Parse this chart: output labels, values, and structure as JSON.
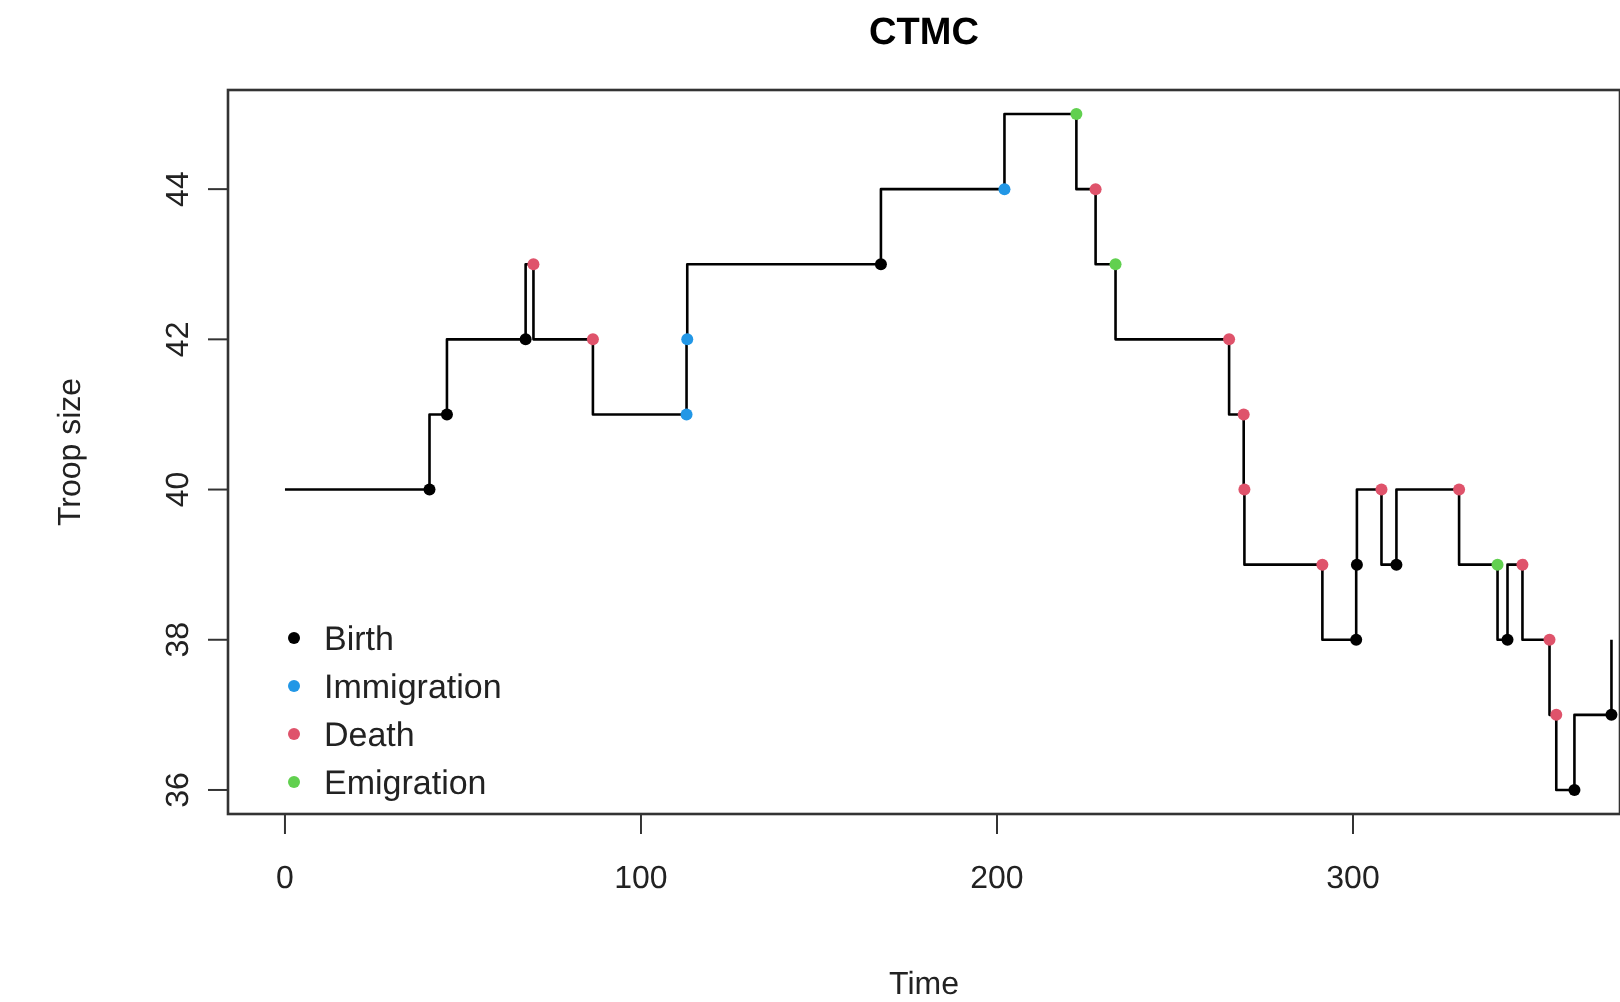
{
  "chart_data": {
    "type": "scatter",
    "title": "CTMC",
    "xlabel": "Time",
    "ylabel": "Troop size",
    "xlim": [
      -16,
      375
    ],
    "xticks": [
      0,
      100,
      200,
      300
    ],
    "ylim": [
      35.68,
      45.32
    ],
    "yticks": [
      36,
      38,
      40,
      42,
      44
    ],
    "grid": false,
    "legend": "bottom left",
    "marker": "circle",
    "series": [
      {
        "type": "step",
        "color": "#000000",
        "marker": "none",
        "line_style": "solid",
        "x": [
          0,
          40.6,
          45.5,
          67.6,
          69.8,
          86.5,
          112.8,
          113.0,
          167.4,
          202.1,
          222.3,
          227.7,
          233.3,
          265.2,
          269.3,
          269.5,
          291.4,
          300.9,
          301.1,
          308.0,
          312.2,
          329.8,
          340.6,
          343.4,
          347.6,
          355.2,
          357.1,
          362.2,
          372.6
        ],
        "values": [
          40,
          41,
          42,
          43,
          42,
          41,
          42,
          43,
          44,
          45,
          44,
          43,
          42,
          41,
          40,
          39,
          38,
          39,
          40,
          39,
          40,
          39,
          38,
          39,
          38,
          37,
          36,
          37,
          38
        ]
      },
      {
        "name": "Birth",
        "color": "#000000",
        "x": [
          40.6,
          45.5,
          67.6,
          167.4,
          300.9,
          301.1,
          312.2,
          343.4,
          362.2,
          372.6
        ],
        "values": [
          40,
          41,
          42,
          43,
          38,
          39,
          39,
          38,
          36,
          37
        ]
      },
      {
        "name": "Immigration",
        "color": "#2297e6",
        "x": [
          112.8,
          113.0,
          202.1
        ],
        "values": [
          41,
          42,
          44
        ]
      },
      {
        "name": "Death",
        "color": "#df536b",
        "x": [
          69.8,
          86.5,
          227.7,
          265.2,
          269.3,
          269.5,
          291.4,
          308.0,
          329.8,
          347.6,
          355.2,
          357.1
        ],
        "values": [
          43,
          42,
          44,
          42,
          41,
          40,
          39,
          40,
          40,
          39,
          38,
          37
        ]
      },
      {
        "name": "Emigration",
        "color": "#61d04f",
        "x": [
          222.3,
          233.3,
          340.6
        ],
        "values": [
          45,
          43,
          39
        ]
      }
    ]
  }
}
